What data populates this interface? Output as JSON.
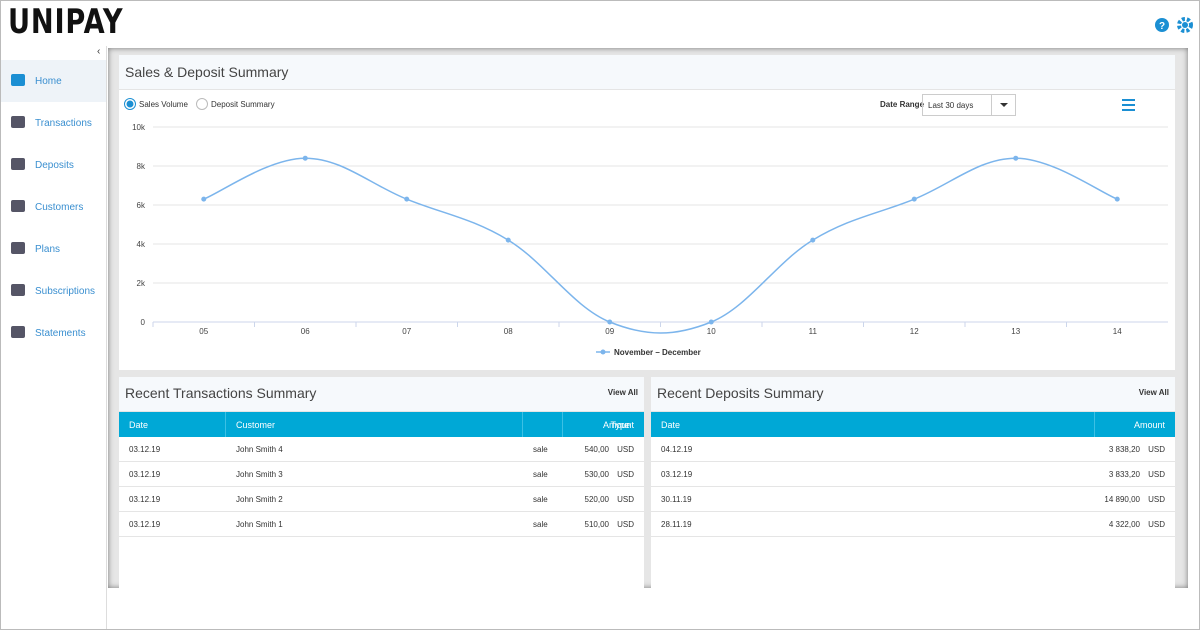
{
  "header": {
    "logo": "UNIPAY"
  },
  "sidebar": {
    "items": [
      "Home",
      "Transactions",
      "Deposits",
      "Customers",
      "Plans",
      "Subscriptions",
      "Statements"
    ]
  },
  "chart_panel": {
    "title": "Sales & Deposit Summary",
    "options": [
      "Sales Volume",
      "Deposit Summary"
    ],
    "date_range_label": "Date Range",
    "date_range_value": "Last 30 days"
  },
  "chart_data": {
    "type": "line",
    "categories": [
      "05",
      "06",
      "07",
      "08",
      "09",
      "10",
      "11",
      "12",
      "13",
      "14"
    ],
    "series": [
      {
        "name": "November – December",
        "color": "#7cb5ec",
        "values": [
          6300,
          8400,
          6300,
          4200,
          0,
          0,
          4200,
          6300,
          8400,
          6300
        ]
      }
    ],
    "ylim": [
      0,
      10000
    ],
    "yticks": [
      0,
      {
        "value": 2000,
        "label": "2k"
      },
      {
        "value": 4000,
        "label": "4k"
      },
      {
        "value": 6000,
        "label": "6k"
      },
      {
        "value": 8000,
        "label": "8k"
      },
      {
        "value": 10000,
        "label": "10k"
      }
    ],
    "grid": true
  },
  "transactions": {
    "title": "Recent Transactions Summary",
    "view_all": "View All",
    "columns": [
      "Date",
      "Customer",
      "Type",
      "Amount"
    ],
    "rows": [
      [
        "03.12.19",
        "John Smith 4",
        "sale",
        "540,00",
        "USD"
      ],
      [
        "03.12.19",
        "John Smith 3",
        "sale",
        "530,00",
        "USD"
      ],
      [
        "03.12.19",
        "John Smith 2",
        "sale",
        "520,00",
        "USD"
      ],
      [
        "03.12.19",
        "John Smith 1",
        "sale",
        "510,00",
        "USD"
      ]
    ]
  },
  "deposits": {
    "title": "Recent Deposits Summary",
    "view_all": "View All",
    "columns": [
      "Date",
      "Amount"
    ],
    "rows": [
      [
        "04.12.19",
        "3 838,20",
        "USD"
      ],
      [
        "03.12.19",
        "3 833,20",
        "USD"
      ],
      [
        "30.11.19",
        "14 890,00",
        "USD"
      ],
      [
        "28.11.19",
        "4 322,00",
        "USD"
      ]
    ]
  }
}
